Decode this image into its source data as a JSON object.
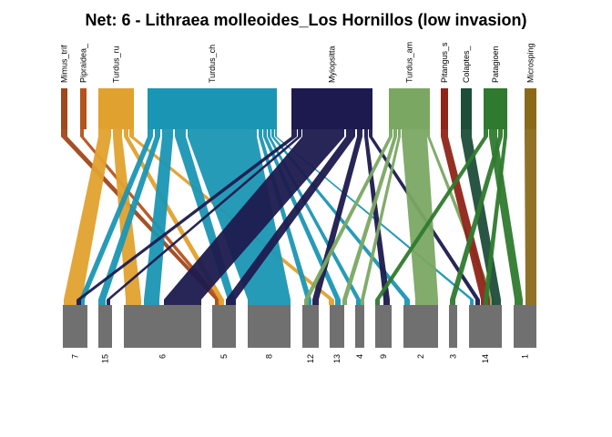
{
  "chart_data": {
    "type": "bipartite-network",
    "title": "Net: 6 - Lithraea molleoides_Los Hornillos (low invasion)",
    "higher_level": [
      {
        "label": "Mimus_trif",
        "color": "#a0471b"
      },
      {
        "label": "Pipraidea_",
        "color": "#b5531c"
      },
      {
        "label": "Turdus_ru",
        "color": "#e0a12e"
      },
      {
        "label": "Turdus_ch",
        "color": "#1a96b4"
      },
      {
        "label": "Myiopsitta",
        "color": "#1c1a4e"
      },
      {
        "label": "Turdus_am",
        "color": "#7aa863"
      },
      {
        "label": "Pitangus_s",
        "color": "#8f2418"
      },
      {
        "label": "Colaptes_",
        "color": "#1e4d3a"
      },
      {
        "label": "Patagioen",
        "color": "#2f7a2e"
      },
      {
        "label": "Microsping",
        "color": "#8a6a1a"
      }
    ],
    "lower_level": [
      "7",
      "15",
      "6",
      "5",
      "8",
      "12",
      "13",
      "4",
      "9",
      "2",
      "3",
      "14",
      "1"
    ],
    "lower_color": "#707070"
  }
}
